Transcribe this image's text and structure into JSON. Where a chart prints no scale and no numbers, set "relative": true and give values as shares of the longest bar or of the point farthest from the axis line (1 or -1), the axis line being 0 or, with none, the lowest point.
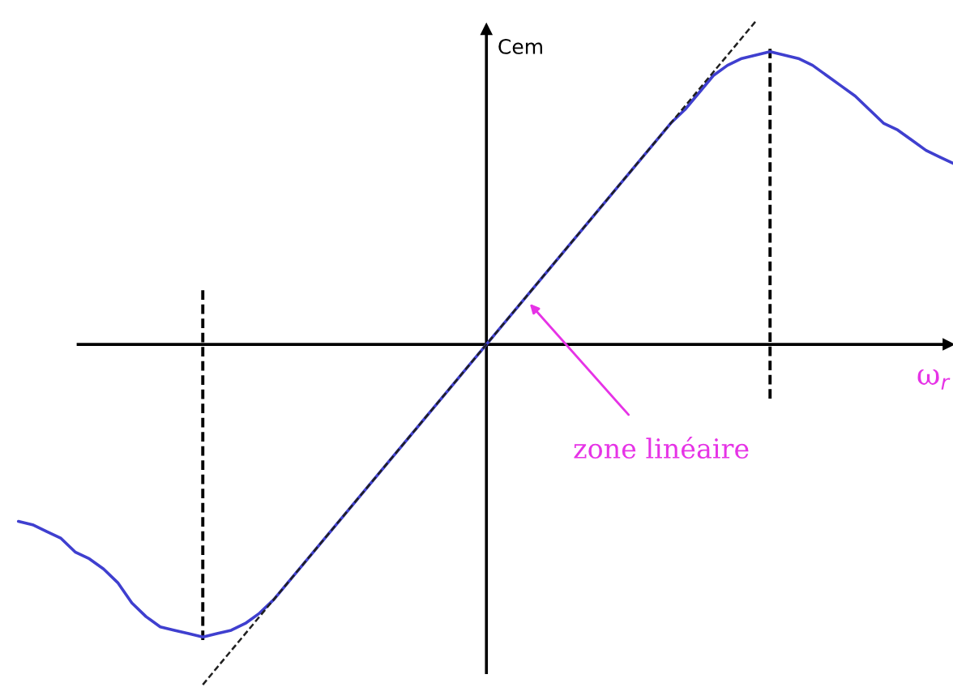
{
  "chart_data": {
    "type": "line",
    "relative": true,
    "xlabel": "ω$_{r}$",
    "ylabel": "Cem",
    "annotations": [
      "zone linéaire"
    ],
    "categories": [
      null,
      null,
      null,
      null,
      null,
      null,
      null,
      null,
      null,
      null,
      null,
      null,
      null,
      null,
      null,
      null,
      null,
      null,
      null,
      null,
      null,
      null,
      null,
      null,
      null,
      null,
      null,
      null,
      null,
      null,
      null,
      null,
      null,
      null,
      null,
      null,
      null,
      null,
      null,
      null,
      null,
      null,
      null,
      null,
      null,
      null,
      null,
      null,
      null,
      null,
      null,
      null,
      null,
      null,
      null,
      null,
      null,
      null,
      null,
      null,
      null,
      null,
      null,
      null,
      null,
      null,
      null
    ],
    "series": [
      {
        "color": "#3f3fcf",
        "line_style": "solid",
        "values": [
          -0.52,
          -0.53,
          -0.55,
          -0.57,
          -0.61,
          -0.63,
          -0.66,
          -0.7,
          -0.76,
          -0.8,
          -0.83,
          -0.84,
          -0.85,
          -0.86,
          -0.85,
          -0.84,
          -0.82,
          -0.79,
          -0.75,
          -0.7,
          -0.65,
          -0.6,
          -0.55,
          -0.5,
          -0.45,
          -0.4,
          -0.35,
          -0.3,
          -0.25,
          -0.2,
          -0.15,
          -0.1,
          -0.05,
          0.0,
          0.05,
          0.1,
          0.15,
          0.2,
          0.25,
          0.3,
          0.35,
          0.4,
          0.45,
          0.5,
          0.55,
          0.6,
          0.65,
          0.69,
          0.74,
          0.79,
          0.82,
          0.84,
          0.85,
          0.86,
          0.85,
          0.84,
          0.82,
          0.79,
          0.76,
          0.73,
          0.69,
          0.65,
          0.63,
          0.6,
          0.57,
          0.55,
          0.53
        ]
      },
      {
        "color": "#202020",
        "line_style": "dashed",
        "values": [
          null,
          null,
          null,
          null,
          null,
          null,
          null,
          null,
          null,
          null,
          null,
          null,
          null,
          -1.0,
          -0.95,
          -0.9,
          -0.85,
          -0.8,
          -0.75,
          -0.7,
          -0.65,
          -0.6,
          -0.55,
          -0.5,
          -0.45,
          -0.4,
          -0.35,
          -0.3,
          -0.25,
          -0.2,
          -0.15,
          -0.1,
          -0.05,
          0.0,
          0.05,
          0.1,
          0.15,
          0.2,
          0.25,
          0.3,
          0.35,
          0.4,
          0.45,
          0.5,
          0.55,
          0.6,
          0.65,
          0.7,
          0.75,
          0.8,
          0.85,
          0.9,
          0.95,
          null,
          null,
          null,
          null,
          null,
          null,
          null,
          null,
          null,
          null,
          null,
          null,
          null,
          null
        ]
      }
    ]
  }
}
